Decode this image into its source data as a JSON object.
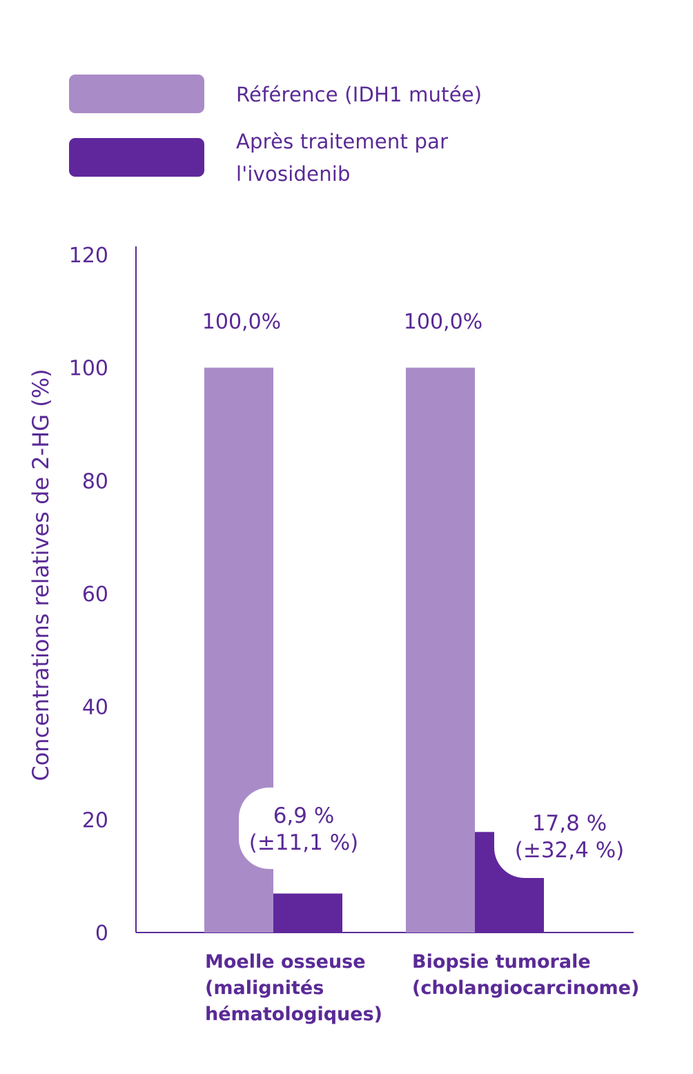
{
  "colors": {
    "reference": "#a98cc7",
    "treatment": "#60279c",
    "axis": "#5a2a96",
    "text": "#5a2a96"
  },
  "legend": [
    {
      "label": "Référence (IDH1 mutée)",
      "color": "#a98cc7"
    },
    {
      "label_line1": "Après traitement par",
      "label_line2": "l'ivosidenib",
      "color": "#60279c"
    }
  ],
  "chart_data": {
    "type": "bar",
    "ylabel": "Concentrations relatives de 2-HG (%)",
    "ylim": [
      0,
      120
    ],
    "yticks": [
      0,
      20,
      40,
      60,
      80,
      100,
      120
    ],
    "grid": false,
    "legend_position": "top-left",
    "categories": [
      {
        "lines": [
          "Moelle osseuse",
          "(malignités",
          "hématologiques)"
        ]
      },
      {
        "lines": [
          "Biopsie tumorale",
          "(cholangiocarcinome)"
        ]
      }
    ],
    "series": [
      {
        "name": "Référence (IDH1 mutée)",
        "values": [
          100,
          100
        ],
        "labels": [
          [
            "100,0%"
          ],
          [
            "100,0%"
          ]
        ]
      },
      {
        "name": "Après traitement par l'ivosidenib",
        "values": [
          6.9,
          17.8
        ],
        "labels": [
          [
            "6,9 %",
            "(±11,1 %)"
          ],
          [
            "17,8 %",
            "(±32,4 %)"
          ]
        ]
      }
    ]
  }
}
